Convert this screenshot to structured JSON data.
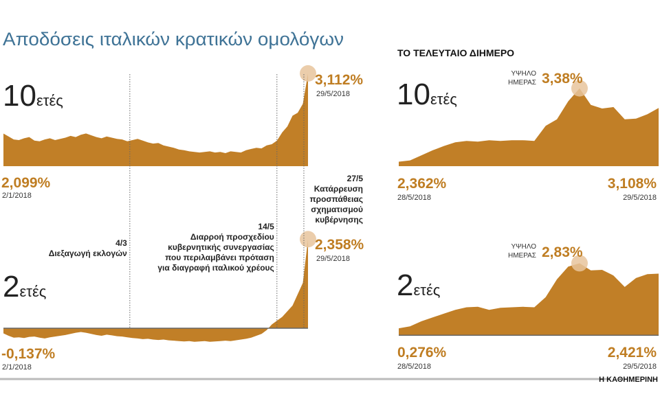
{
  "title": "Αποδόσεις ιταλικών κρατικών ομολόγων",
  "section_title": "ΤΟ ΤΕΛΕΥΤΑΙΟ ΔΙΗΜΕΡΟ",
  "source": "Η ΚΑΘΗΜΕΡΙΝΗ",
  "chart_data": [
    {
      "type": "area",
      "maturity": "10",
      "maturity_unit": "ετές",
      "color": "#c17f27",
      "ylim": [
        1.55,
        3.25
      ],
      "categories": [
        "2/1/2018",
        null,
        null,
        null,
        null,
        null,
        null,
        null,
        null,
        null,
        null,
        null,
        null,
        null,
        null,
        null,
        null,
        null,
        null,
        null,
        null,
        null,
        null,
        null,
        null,
        null,
        null,
        null,
        null,
        null,
        null,
        null,
        null,
        null,
        null,
        null,
        null,
        null,
        null,
        null,
        null,
        null,
        null,
        null,
        null,
        null,
        null,
        null,
        null,
        null,
        null,
        null,
        null,
        null,
        null,
        null,
        null,
        null,
        null,
        "29/5/2018"
      ],
      "values": [
        2.099,
        2.05,
        2.0,
        1.99,
        2.02,
        2.04,
        1.98,
        1.97,
        2.0,
        2.02,
        1.99,
        2.01,
        2.03,
        2.06,
        2.04,
        2.08,
        2.1,
        2.07,
        2.04,
        2.02,
        2.05,
        2.03,
        2.01,
        2.0,
        1.97,
        1.99,
        2.01,
        1.98,
        1.95,
        1.93,
        1.94,
        1.9,
        1.88,
        1.86,
        1.83,
        1.82,
        1.8,
        1.79,
        1.78,
        1.79,
        1.8,
        1.78,
        1.79,
        1.77,
        1.8,
        1.79,
        1.78,
        1.82,
        1.84,
        1.86,
        1.85,
        1.9,
        1.92,
        1.98,
        2.12,
        2.22,
        2.4,
        2.45,
        2.6,
        3.112
      ],
      "value_labels": [
        "2,099%",
        null,
        null,
        null,
        null,
        null,
        null,
        null,
        null,
        null,
        null,
        null,
        null,
        null,
        null,
        null,
        null,
        null,
        null,
        null,
        null,
        null,
        null,
        null,
        null,
        null,
        null,
        null,
        null,
        null,
        null,
        null,
        null,
        null,
        null,
        null,
        null,
        null,
        null,
        null,
        null,
        null,
        null,
        null,
        null,
        null,
        null,
        null,
        null,
        null,
        null,
        null,
        null,
        null,
        null,
        null,
        null,
        null,
        null,
        "3,112%"
      ]
    },
    {
      "type": "area",
      "maturity": "2",
      "maturity_unit": "ετές",
      "color": "#c17f27",
      "ylim": [
        -0.4,
        2.6
      ],
      "categories": [
        "2/1/2018",
        null,
        null,
        null,
        null,
        null,
        null,
        null,
        null,
        null,
        null,
        null,
        null,
        null,
        null,
        null,
        null,
        null,
        null,
        null,
        null,
        null,
        null,
        null,
        null,
        null,
        null,
        null,
        null,
        null,
        null,
        null,
        null,
        null,
        null,
        null,
        null,
        null,
        null,
        null,
        null,
        null,
        null,
        null,
        null,
        null,
        null,
        null,
        null,
        null,
        null,
        null,
        null,
        null,
        null,
        null,
        null,
        null,
        null,
        "29/5/2018"
      ],
      "values": [
        -0.137,
        -0.2,
        -0.25,
        -0.24,
        -0.26,
        -0.23,
        -0.22,
        -0.25,
        -0.27,
        -0.24,
        -0.22,
        -0.2,
        -0.18,
        -0.15,
        -0.12,
        -0.1,
        -0.12,
        -0.15,
        -0.18,
        -0.2,
        -0.17,
        -0.19,
        -0.21,
        -0.22,
        -0.24,
        -0.26,
        -0.27,
        -0.29,
        -0.28,
        -0.3,
        -0.31,
        -0.3,
        -0.32,
        -0.33,
        -0.34,
        -0.35,
        -0.34,
        -0.36,
        -0.35,
        -0.34,
        -0.36,
        -0.35,
        -0.34,
        -0.33,
        -0.34,
        -0.32,
        -0.3,
        -0.28,
        -0.25,
        -0.2,
        -0.15,
        -0.05,
        0.1,
        0.2,
        0.3,
        0.45,
        0.6,
        0.9,
        1.2,
        2.358
      ],
      "value_labels": [
        "-0,137%",
        null,
        null,
        null,
        null,
        null,
        null,
        null,
        null,
        null,
        null,
        null,
        null,
        null,
        null,
        null,
        null,
        null,
        null,
        null,
        null,
        null,
        null,
        null,
        null,
        null,
        null,
        null,
        null,
        null,
        null,
        null,
        null,
        null,
        null,
        null,
        null,
        null,
        null,
        null,
        null,
        null,
        null,
        null,
        null,
        null,
        null,
        null,
        null,
        null,
        null,
        null,
        null,
        null,
        null,
        null,
        null,
        null,
        null,
        "2,358%"
      ],
      "annotations": [
        {
          "date": "4/3",
          "text": [
            "Διεξαγωγή εκλογών"
          ]
        },
        {
          "date": "14/5",
          "text": [
            "Διαρροή προσχεδίου",
            "κυβερνητικής συνεργασίας",
            "που περιλαμβάνει πρόταση",
            "για διαγραφή ιταλικού χρέους"
          ]
        },
        {
          "date": "27/5",
          "text": [
            "Κατάρρευση",
            "προσπάθειας",
            "σχηματισμού",
            "κυβέρνησης"
          ]
        }
      ]
    },
    {
      "type": "area",
      "maturity": "10",
      "maturity_unit": "ετές",
      "color": "#c17f27",
      "ylim": [
        2.3,
        3.7
      ],
      "categories": [
        "28/5/2018",
        null,
        null,
        null,
        null,
        null,
        null,
        null,
        null,
        null,
        null,
        null,
        null,
        null,
        null,
        null,
        null,
        null,
        null,
        null,
        null,
        null,
        null,
        "29/5/2018"
      ],
      "values": [
        2.362,
        2.38,
        2.45,
        2.52,
        2.58,
        2.63,
        2.65,
        2.64,
        2.66,
        2.65,
        2.66,
        2.66,
        2.65,
        2.86,
        2.95,
        3.2,
        3.38,
        3.15,
        3.1,
        3.12,
        2.95,
        2.96,
        3.02,
        3.108
      ],
      "value_labels": [
        "2,362%",
        null,
        null,
        null,
        null,
        null,
        null,
        null,
        null,
        null,
        null,
        null,
        null,
        null,
        null,
        null,
        "3,38%",
        null,
        null,
        null,
        null,
        null,
        null,
        "3,108%"
      ],
      "high_label": [
        "ΥΨΗΛΟ",
        "ΗΜΕΡΑΣ"
      ]
    },
    {
      "type": "area",
      "maturity": "2",
      "maturity_unit": "ετές",
      "color": "#c17f27",
      "ylim": [
        -0.1,
        4.0
      ],
      "categories": [
        "28/5/2018",
        null,
        null,
        null,
        null,
        null,
        null,
        null,
        null,
        null,
        null,
        null,
        null,
        null,
        null,
        null,
        null,
        null,
        null,
        null,
        null,
        null,
        null,
        "29/5/2018"
      ],
      "values": [
        0.276,
        0.35,
        0.55,
        0.7,
        0.85,
        1.0,
        1.1,
        1.12,
        1.0,
        1.08,
        1.1,
        1.12,
        1.1,
        1.5,
        2.2,
        2.7,
        2.83,
        2.55,
        2.57,
        2.35,
        1.9,
        2.25,
        2.4,
        2.421
      ],
      "value_labels": [
        "0,276%",
        null,
        null,
        null,
        null,
        null,
        null,
        null,
        null,
        null,
        null,
        null,
        null,
        null,
        null,
        null,
        "2,83%",
        null,
        null,
        null,
        null,
        null,
        null,
        "2,421%"
      ],
      "high_label": [
        "ΥΨΗΛΟ",
        "ΗΜΕΡΑΣ"
      ]
    }
  ]
}
